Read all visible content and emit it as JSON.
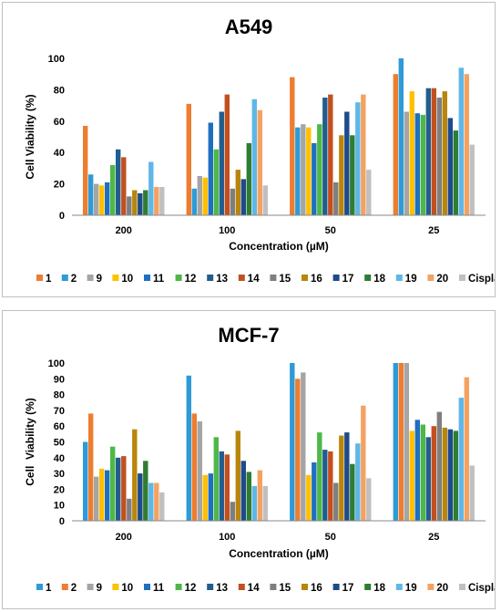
{
  "chart_data": [
    {
      "type": "bar",
      "title": "A549",
      "xlabel": "Concentration (µM)",
      "ylabel": "Cell Viability (%)",
      "ylim": [
        0,
        100
      ],
      "yticks": [
        0,
        20,
        40,
        60,
        80,
        100
      ],
      "categories": [
        "200",
        "100",
        "50",
        "25"
      ],
      "grid": false,
      "legend": "bottom",
      "series": [
        {
          "name": "1",
          "color": "#ED7D31",
          "values": [
            57,
            71,
            88,
            90
          ]
        },
        {
          "name": "2",
          "color": "#2E9BD6",
          "values": [
            26,
            17,
            56,
            100
          ]
        },
        {
          "name": "9",
          "color": "#A5A5A5",
          "values": [
            20,
            25,
            58,
            66
          ]
        },
        {
          "name": "10",
          "color": "#FFC000",
          "values": [
            19,
            24,
            56,
            79
          ]
        },
        {
          "name": "11",
          "color": "#1F6FC1",
          "values": [
            21,
            59,
            46,
            65
          ]
        },
        {
          "name": "12",
          "color": "#4DB848",
          "values": [
            32,
            42,
            58,
            64
          ]
        },
        {
          "name": "13",
          "color": "#215E8F",
          "values": [
            42,
            66,
            75,
            81
          ]
        },
        {
          "name": "14",
          "color": "#C2501F",
          "values": [
            37,
            77,
            77,
            81
          ]
        },
        {
          "name": "15",
          "color": "#7F7F7F",
          "values": [
            12,
            17,
            21,
            75
          ]
        },
        {
          "name": "16",
          "color": "#B8860B",
          "values": [
            16,
            29,
            51,
            79
          ]
        },
        {
          "name": "17",
          "color": "#1E4B8B",
          "values": [
            14,
            23,
            66,
            62
          ]
        },
        {
          "name": "18",
          "color": "#2E7D32",
          "values": [
            16,
            46,
            51,
            54
          ]
        },
        {
          "name": "19",
          "color": "#5EB7E8",
          "values": [
            34,
            74,
            72,
            94
          ]
        },
        {
          "name": "20",
          "color": "#F4A261",
          "values": [
            18,
            67,
            77,
            90
          ]
        },
        {
          "name": "Cisplatin",
          "color": "#C0C0C0",
          "values": [
            18,
            19,
            29,
            45
          ]
        }
      ]
    },
    {
      "type": "bar",
      "title": "MCF-7",
      "xlabel": "Concentration (µM)",
      "ylabel": "Cell  Viability (%)",
      "ylim": [
        0,
        100
      ],
      "yticks": [
        0,
        10,
        20,
        30,
        40,
        50,
        60,
        70,
        80,
        90,
        100
      ],
      "categories": [
        "200",
        "100",
        "50",
        "25"
      ],
      "grid": false,
      "legend": "bottom",
      "series": [
        {
          "name": "1",
          "color": "#2E9BD6",
          "values": [
            50,
            92,
            100,
            100
          ]
        },
        {
          "name": "2",
          "color": "#ED7D31",
          "values": [
            68,
            68,
            90,
            100
          ]
        },
        {
          "name": "9",
          "color": "#A5A5A5",
          "values": [
            28,
            63,
            94,
            100
          ]
        },
        {
          "name": "10",
          "color": "#FFC000",
          "values": [
            33,
            29,
            29,
            57
          ]
        },
        {
          "name": "11",
          "color": "#1F6FC1",
          "values": [
            32,
            30,
            37,
            64
          ]
        },
        {
          "name": "12",
          "color": "#4DB848",
          "values": [
            47,
            53,
            56,
            61
          ]
        },
        {
          "name": "13",
          "color": "#215E8F",
          "values": [
            40,
            44,
            45,
            53
          ]
        },
        {
          "name": "14",
          "color": "#C2501F",
          "values": [
            41,
            42,
            44,
            60
          ]
        },
        {
          "name": "15",
          "color": "#7F7F7F",
          "values": [
            14,
            12,
            24,
            69
          ]
        },
        {
          "name": "16",
          "color": "#B8860B",
          "values": [
            58,
            57,
            54,
            59
          ]
        },
        {
          "name": "17",
          "color": "#1E4B8B",
          "values": [
            30,
            38,
            56,
            58
          ]
        },
        {
          "name": "18",
          "color": "#2E7D32",
          "values": [
            38,
            31,
            36,
            57
          ]
        },
        {
          "name": "19",
          "color": "#5EB7E8",
          "values": [
            24,
            22,
            49,
            78
          ]
        },
        {
          "name": "20",
          "color": "#F4A261",
          "values": [
            24,
            32,
            73,
            91
          ]
        },
        {
          "name": "Cisplatin",
          "color": "#C0C0C0",
          "values": [
            18,
            22,
            27,
            35
          ]
        }
      ]
    }
  ]
}
